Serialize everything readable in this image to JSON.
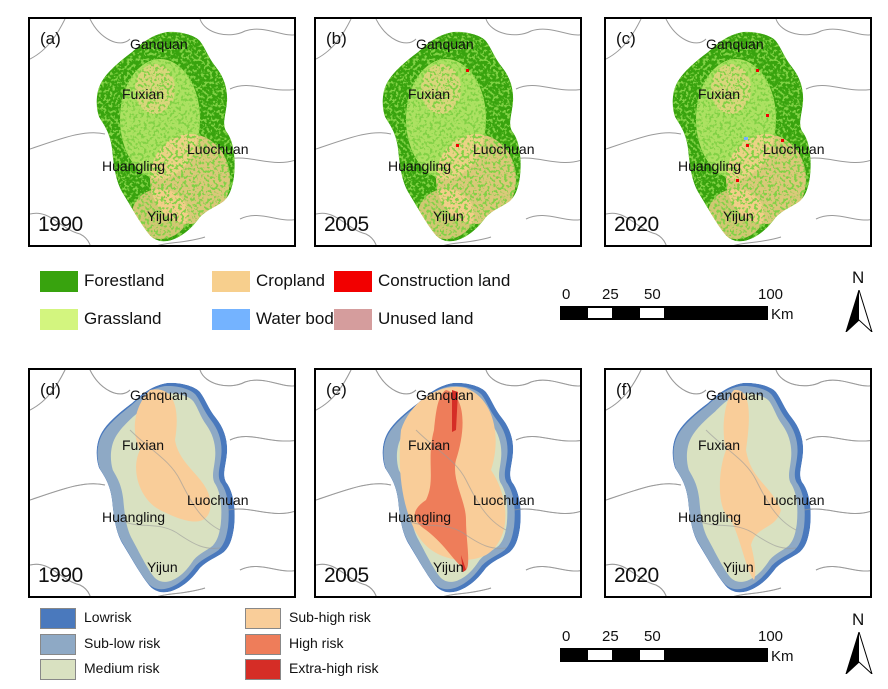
{
  "colors": {
    "forestland": "#38a30e",
    "cropland": "#f7cf8d",
    "construction": "#f20000",
    "grassland": "#d3f57f",
    "water": "#74b3ff",
    "unused": "#d59d9d",
    "low": "#4a79bd",
    "sub_low": "#8ea9c5",
    "medium": "#d9e1c1",
    "sub_high": "#f9cd99",
    "high": "#ee7d5a",
    "extra_high": "#d52d26"
  },
  "places": {
    "ganquan": "Ganquan",
    "fuxian": "Fuxian",
    "luochuan": "Luochuan",
    "huangling": "Huangling",
    "yijun": "Yijun"
  },
  "panels": [
    {
      "tag": "(a)",
      "year": "1990"
    },
    {
      "tag": "(b)",
      "year": "2005"
    },
    {
      "tag": "(c)",
      "year": "2020"
    },
    {
      "tag": "(d)",
      "year": "1990"
    },
    {
      "tag": "(e)",
      "year": "2005"
    },
    {
      "tag": "(f)",
      "year": "2020"
    }
  ],
  "landuse_legend": [
    "Forestland",
    "Cropland",
    "Construction land",
    "Grassland",
    "Water body",
    "Unused land"
  ],
  "risk_legend": [
    "Lowrisk",
    "Sub-low risk",
    "Medium risk",
    "Sub-high risk",
    "High risk",
    "Extra-high risk"
  ],
  "scale": {
    "ticks": [
      "0",
      "25",
      "50",
      "100"
    ],
    "unit": "Km"
  },
  "north": "N"
}
